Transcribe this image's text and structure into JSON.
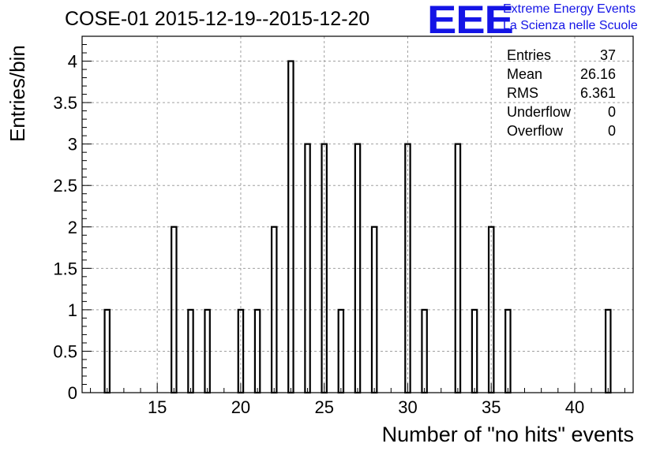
{
  "title": "COSE-01 2015-12-19--2015-12-20",
  "logo": {
    "mark": "EEE",
    "line1": "Extreme Energy Events",
    "line2": "La Scienza nelle Scuole",
    "color": "#1414e6"
  },
  "stats": [
    {
      "label": "Entries",
      "value": "37"
    },
    {
      "label": "Mean",
      "value": "26.16"
    },
    {
      "label": "RMS",
      "value": "6.361"
    },
    {
      "label": "Underflow",
      "value": "0"
    },
    {
      "label": "Overflow",
      "value": "0"
    }
  ],
  "chart_data": {
    "type": "bar",
    "title": "COSE-01 2015-12-19--2015-12-20",
    "xlabel": "Number of \"no hits\" events",
    "ylabel": "Entries/bin",
    "xlim": [
      10.5,
      43.5
    ],
    "ylim": [
      0,
      4.3
    ],
    "bin_width": 0.3,
    "grid": true,
    "x_ticks": [
      15,
      20,
      25,
      30,
      35,
      40
    ],
    "y_ticks": [
      0,
      0.5,
      1,
      1.5,
      2,
      2.5,
      3,
      3.5,
      4
    ],
    "y_tick_labels": [
      "0",
      "0.5",
      "1",
      "1.5",
      "2",
      "2.5",
      "3",
      "3.5",
      "4"
    ],
    "bins": [
      {
        "x": 12,
        "y": 1
      },
      {
        "x": 16,
        "y": 2
      },
      {
        "x": 17,
        "y": 1
      },
      {
        "x": 18,
        "y": 1
      },
      {
        "x": 20,
        "y": 1
      },
      {
        "x": 21,
        "y": 1
      },
      {
        "x": 22,
        "y": 2
      },
      {
        "x": 23,
        "y": 4
      },
      {
        "x": 24,
        "y": 3
      },
      {
        "x": 25,
        "y": 3
      },
      {
        "x": 26,
        "y": 1
      },
      {
        "x": 27,
        "y": 3
      },
      {
        "x": 28,
        "y": 2
      },
      {
        "x": 30,
        "y": 3
      },
      {
        "x": 31,
        "y": 1
      },
      {
        "x": 33,
        "y": 3
      },
      {
        "x": 34,
        "y": 1
      },
      {
        "x": 35,
        "y": 2
      },
      {
        "x": 36,
        "y": 1
      },
      {
        "x": 42,
        "y": 1
      }
    ]
  }
}
